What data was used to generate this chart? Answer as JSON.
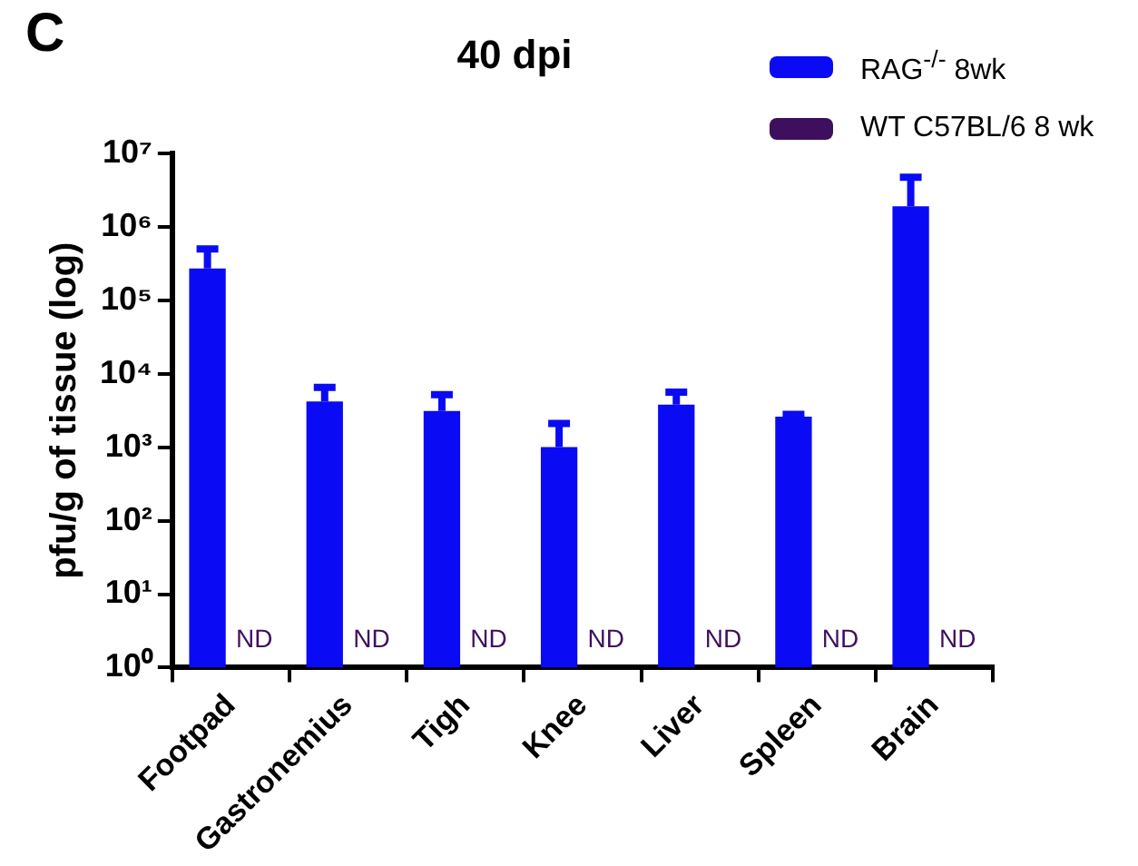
{
  "chart_data": {
    "type": "bar",
    "title": "40 dpi",
    "ylabel": "pfu/g of tissue (log)",
    "annotations": [
      "C"
    ],
    "categories": [
      "Footpad",
      "Gastronemius",
      "Tigh",
      "Knee",
      "Liver",
      "Spleen",
      "Brain"
    ],
    "series": [
      {
        "name": "RAG$^{-/-}$ 8wk",
        "color": "#0a0af5",
        "values": [
          270000,
          4200,
          3100,
          1000,
          3800,
          2600,
          1900000
        ],
        "errors": [
          [
            270000,
            500000
          ],
          [
            4200,
            6500
          ],
          [
            3100,
            5200
          ],
          [
            1000,
            2100
          ],
          [
            3800,
            5600
          ],
          [
            2600,
            2800
          ],
          [
            1900000,
            4700000
          ]
        ]
      },
      {
        "name": "WT C57BL/6 8 wk",
        "color": "#3f0f5f",
        "values": [
          null,
          null,
          null,
          null,
          null,
          null,
          null
        ],
        "value_labels": [
          "ND",
          "ND",
          "ND",
          "ND",
          "ND",
          "ND",
          "ND"
        ]
      }
    ],
    "log": true,
    "ylim": [
      1,
      10000000
    ],
    "yticks": [
      {
        "value": 1,
        "label": "10⁰"
      },
      {
        "value": 10,
        "label": "10¹"
      },
      {
        "value": 100,
        "label": "10²"
      },
      {
        "value": 1000,
        "label": "10³"
      },
      {
        "value": 10000,
        "label": "10⁴"
      },
      {
        "value": 100000,
        "label": "10⁵"
      },
      {
        "value": 1000000,
        "label": "10⁶"
      },
      {
        "value": 10000000,
        "label": "10⁷"
      }
    ],
    "grid": false,
    "legend": "top right"
  }
}
